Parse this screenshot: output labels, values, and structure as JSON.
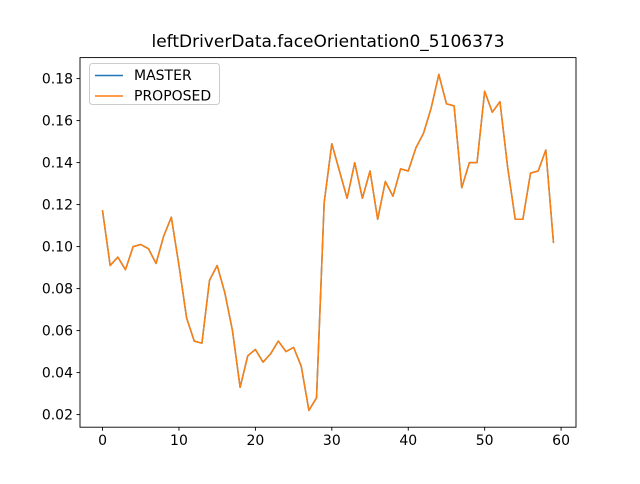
{
  "chart_data": {
    "type": "line",
    "title": "leftDriverData.faceOrientation0_5106373",
    "xlabel": "",
    "ylabel": "",
    "x": [
      0,
      1,
      2,
      3,
      4,
      5,
      6,
      7,
      8,
      9,
      10,
      11,
      12,
      13,
      14,
      15,
      16,
      17,
      18,
      19,
      20,
      21,
      22,
      23,
      24,
      25,
      26,
      27,
      28,
      29,
      30,
      31,
      32,
      33,
      34,
      35,
      36,
      37,
      38,
      39,
      40,
      41,
      42,
      43,
      44,
      45,
      46,
      47,
      48,
      49,
      50,
      51,
      52,
      53,
      54,
      55,
      56,
      57,
      58,
      59
    ],
    "series": [
      {
        "name": "MASTER",
        "color": "#1f77b4",
        "values": [
          0.117,
          0.091,
          0.095,
          0.089,
          0.1,
          0.101,
          0.099,
          0.092,
          0.105,
          0.114,
          0.091,
          0.066,
          0.055,
          0.054,
          0.084,
          0.091,
          0.078,
          0.06,
          0.033,
          0.048,
          0.051,
          0.045,
          0.049,
          0.055,
          0.05,
          0.052,
          0.043,
          0.022,
          0.028,
          0.121,
          0.149,
          0.136,
          0.123,
          0.14,
          0.123,
          0.136,
          0.113,
          0.131,
          0.124,
          0.137,
          0.136,
          0.147,
          0.154,
          0.166,
          0.182,
          0.168,
          0.167,
          0.128,
          0.14,
          0.14,
          0.174,
          0.164,
          0.169,
          0.138,
          0.113,
          0.113,
          0.135,
          0.136,
          0.146,
          0.102
        ]
      },
      {
        "name": "PROPOSED",
        "color": "#ff7f0e",
        "values": [
          0.117,
          0.091,
          0.095,
          0.089,
          0.1,
          0.101,
          0.099,
          0.092,
          0.105,
          0.114,
          0.091,
          0.066,
          0.055,
          0.054,
          0.084,
          0.091,
          0.078,
          0.06,
          0.033,
          0.048,
          0.051,
          0.045,
          0.049,
          0.055,
          0.05,
          0.052,
          0.043,
          0.022,
          0.028,
          0.121,
          0.149,
          0.136,
          0.123,
          0.14,
          0.123,
          0.136,
          0.113,
          0.131,
          0.124,
          0.137,
          0.136,
          0.147,
          0.154,
          0.166,
          0.182,
          0.168,
          0.167,
          0.128,
          0.14,
          0.14,
          0.174,
          0.164,
          0.169,
          0.138,
          0.113,
          0.113,
          0.135,
          0.136,
          0.146,
          0.102
        ]
      }
    ],
    "xlim": [
      -2.95,
      61.95
    ],
    "ylim": [
      0.014,
      0.19
    ],
    "xticks": [
      "0",
      "10",
      "20",
      "30",
      "40",
      "50",
      "60"
    ],
    "yticks": [
      "0.02",
      "0.04",
      "0.06",
      "0.08",
      "0.10",
      "0.12",
      "0.14",
      "0.16",
      "0.18"
    ],
    "grid": false,
    "legend_position": "upper left",
    "line_width": 1.5,
    "background": "#ffffff",
    "frame_color": "#000000",
    "legend_border_color": "#cccccc"
  }
}
